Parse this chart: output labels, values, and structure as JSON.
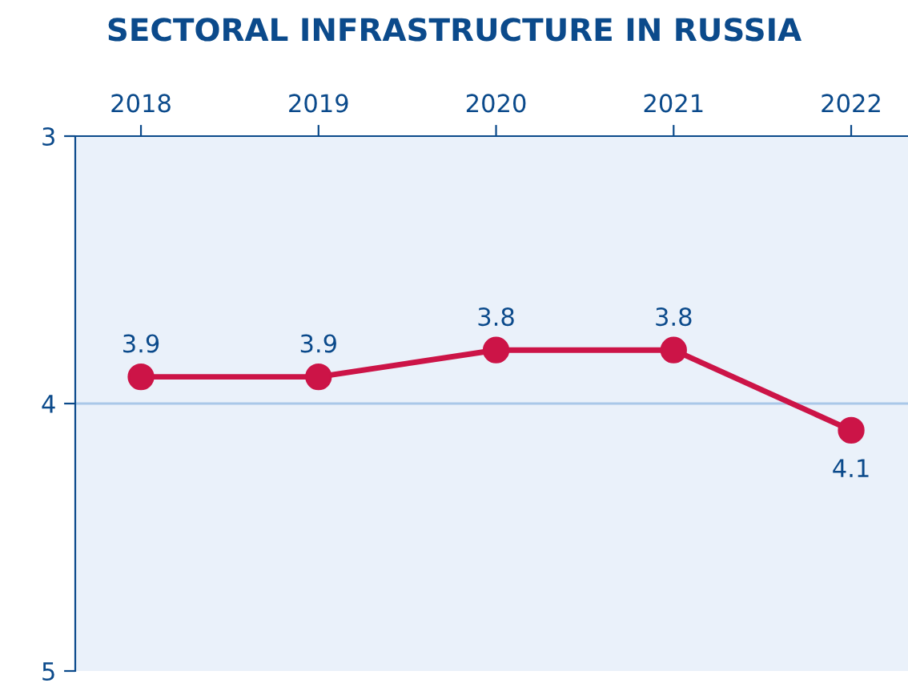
{
  "chart_data": {
    "type": "line",
    "title": "SECTORAL INFRASTRUCTURE IN RUSSIA",
    "categories": [
      "2018",
      "2019",
      "2020",
      "2021",
      "2022"
    ],
    "series": [
      {
        "color": "#cc1447",
        "values": [
          3.9,
          3.9,
          3.8,
          3.8,
          4.1
        ]
      }
    ],
    "ylim": [
      5,
      3
    ],
    "yticks": [
      3,
      4,
      5
    ],
    "ref_lines": [
      {
        "axis": "y",
        "value": 4,
        "color": "#a9c8e8"
      }
    ],
    "data_labels": true,
    "marker": "circle",
    "line_style": "solid",
    "legend": false
  }
}
